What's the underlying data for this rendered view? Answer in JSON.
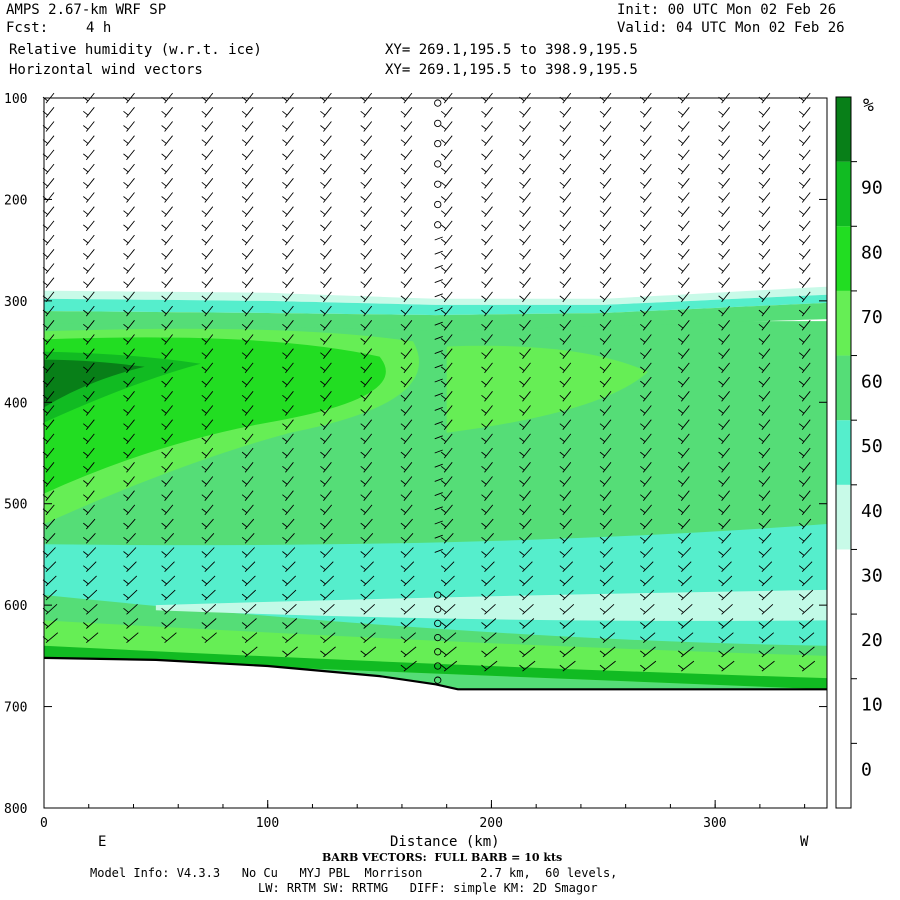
{
  "header": {
    "model": "AMPS 2.67-km WRF SP",
    "fcst_label": "Fcst:",
    "fcst_value": "4 h",
    "init": "Init: 00 UTC Mon 02 Feb 26",
    "valid": "Valid: 04 UTC Mon 02 Feb 26",
    "field1": "Relative humidity (w.r.t. ice)",
    "field2": "Horizontal wind vectors",
    "xy1": "XY= 269.1,195.5 to 398.9,195.5",
    "xy2": "XY= 269.1,195.5 to 398.9,195.5"
  },
  "footer": {
    "barb_note": "BARB VECTORS:  FULL BARB = 10 kts",
    "info1": "Model Info: V4.3.3   No Cu   MYJ PBL  Morrison        2.7 km,  60 levels,",
    "info2": "LW: RRTM SW: RRTMG   DIFF: simple KM: 2D Smagor"
  },
  "chart_data": {
    "type": "heatmap",
    "title": "Relative humidity (w.r.t. ice)",
    "overlay": "Horizontal wind vectors (barbs)",
    "xlabel": "Distance (km)",
    "ylabel": "",
    "xlim": [
      0,
      350
    ],
    "ylim": [
      800,
      100
    ],
    "x_ticks": [
      0,
      100,
      200,
      300
    ],
    "y_ticks": [
      100,
      200,
      300,
      400,
      500,
      600,
      700,
      800
    ],
    "x_end_labels": {
      "left": "E",
      "right": "W"
    },
    "colorbar": {
      "unit": "%",
      "levels": [
        0,
        10,
        20,
        30,
        40,
        50,
        60,
        70,
        80,
        90
      ],
      "colors": [
        "#ffffff",
        "#ffffff",
        "#ffffff",
        "#ffffff",
        "#c8fae8",
        "#55eecc",
        "#55dd77",
        "#66ee55",
        "#22dd22",
        "#11bb22",
        "#087f18"
      ]
    },
    "terrain_surface_hpa": [
      [
        0,
        652
      ],
      [
        50,
        654
      ],
      [
        100,
        660
      ],
      [
        150,
        670
      ],
      [
        175,
        678
      ],
      [
        185,
        683
      ],
      [
        350,
        683
      ]
    ],
    "rh_bands": [
      {
        "range": "30-40",
        "color": "#c8fae8",
        "top": [
          [
            0,
            290
          ],
          [
            100,
            292
          ],
          [
            175,
            298
          ],
          [
            250,
            298
          ],
          [
            350,
            286
          ]
        ],
        "bottom": [
          [
            0,
            298
          ],
          [
            100,
            300
          ],
          [
            175,
            304
          ],
          [
            250,
            304
          ],
          [
            350,
            294
          ]
        ]
      },
      {
        "range": "40-50",
        "color": "#55eecc",
        "top": [
          [
            0,
            298
          ],
          [
            100,
            300
          ],
          [
            175,
            304
          ],
          [
            250,
            304
          ],
          [
            350,
            294
          ]
        ],
        "bottom": [
          [
            0,
            310
          ],
          [
            100,
            312
          ],
          [
            175,
            314
          ],
          [
            250,
            312
          ],
          [
            350,
            302
          ]
        ]
      },
      {
        "range": "50-60",
        "color": "#55dd77",
        "top": [
          [
            0,
            310
          ],
          [
            100,
            312
          ],
          [
            175,
            314
          ],
          [
            250,
            312
          ],
          [
            350,
            302
          ]
        ],
        "bottom": [
          [
            0,
            322
          ],
          [
            100,
            325
          ],
          [
            175,
            330
          ],
          [
            250,
            325
          ],
          [
            350,
            318
          ]
        ]
      }
    ],
    "barb_columns_km": [
      0,
      18,
      36,
      53,
      71,
      89,
      107,
      124,
      142,
      160,
      178,
      196,
      213,
      231,
      249,
      267,
      284,
      302,
      320,
      338
    ],
    "calm_column_km": 176
  }
}
